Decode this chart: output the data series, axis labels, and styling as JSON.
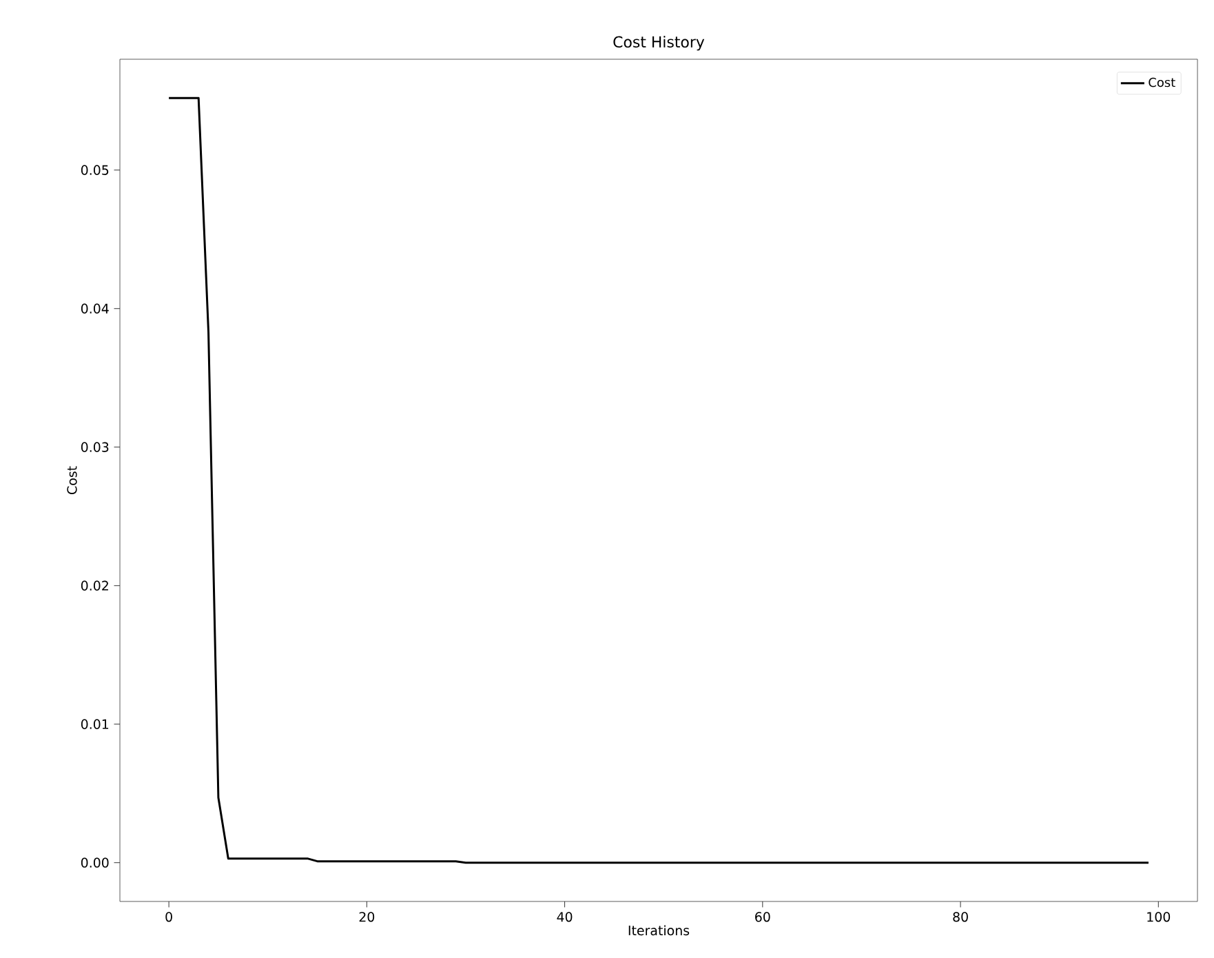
{
  "chart_data": {
    "type": "line",
    "title": "Cost History",
    "xlabel": "Iterations",
    "ylabel": "Cost",
    "x": [
      0,
      1,
      2,
      3,
      4,
      5,
      6,
      14,
      15,
      29,
      30,
      99
    ],
    "series": [
      {
        "name": "Cost",
        "color": "#000000",
        "values": [
          0.0552,
          0.0552,
          0.0552,
          0.0552,
          0.0383,
          0.0047,
          0.0003,
          0.0003,
          0.0001,
          0.0001,
          0.0,
          0.0
        ]
      }
    ],
    "xlim": [
      -4.95,
      103.95
    ],
    "ylim": [
      -0.0028,
      0.058
    ],
    "xticks": [
      0,
      20,
      40,
      60,
      80,
      100
    ],
    "yticks": [
      {
        "value": 0,
        "label": "0.00"
      },
      {
        "value": 0.01,
        "label": "0.01"
      },
      {
        "value": 0.02,
        "label": "0.02"
      },
      {
        "value": 0.03,
        "label": "0.03"
      },
      {
        "value": 0.04,
        "label": "0.04"
      },
      {
        "value": 0.05,
        "label": "0.05"
      }
    ],
    "grid": false,
    "legend": "top right",
    "line_style": "solid",
    "marker": "none"
  }
}
